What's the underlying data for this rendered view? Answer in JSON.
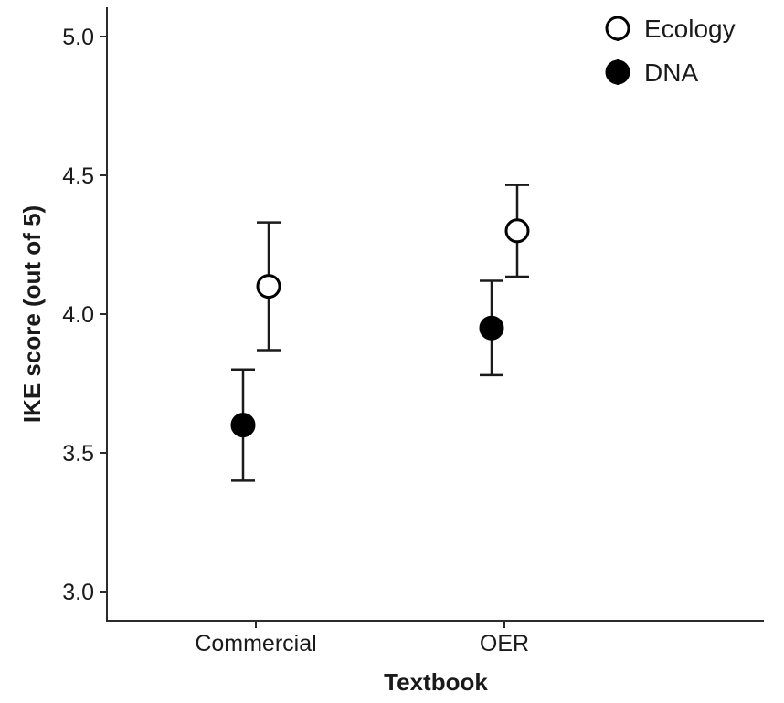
{
  "chart_data": {
    "type": "scatter",
    "title": "",
    "xlabel": "Textbook",
    "ylabel": "IKE score (out of 5)",
    "categories": [
      "Commercial",
      "OER"
    ],
    "ylim": [
      2.9,
      5.1
    ],
    "yticks": [
      "3.0",
      "3.5",
      "4.0",
      "4.5",
      "5.0"
    ],
    "grid": false,
    "legend_position": "top-right",
    "series": [
      {
        "name": "Ecology",
        "marker": "open-circle",
        "color": "#000000",
        "values": [
          4.1,
          4.3
        ],
        "err_low": [
          3.87,
          4.135
        ],
        "err_high": [
          4.33,
          4.465
        ]
      },
      {
        "name": "DNA",
        "marker": "filled-circle",
        "color": "#000000",
        "values": [
          3.6,
          3.95
        ],
        "err_low": [
          3.4,
          3.78
        ],
        "err_high": [
          3.8,
          4.12
        ]
      }
    ]
  }
}
